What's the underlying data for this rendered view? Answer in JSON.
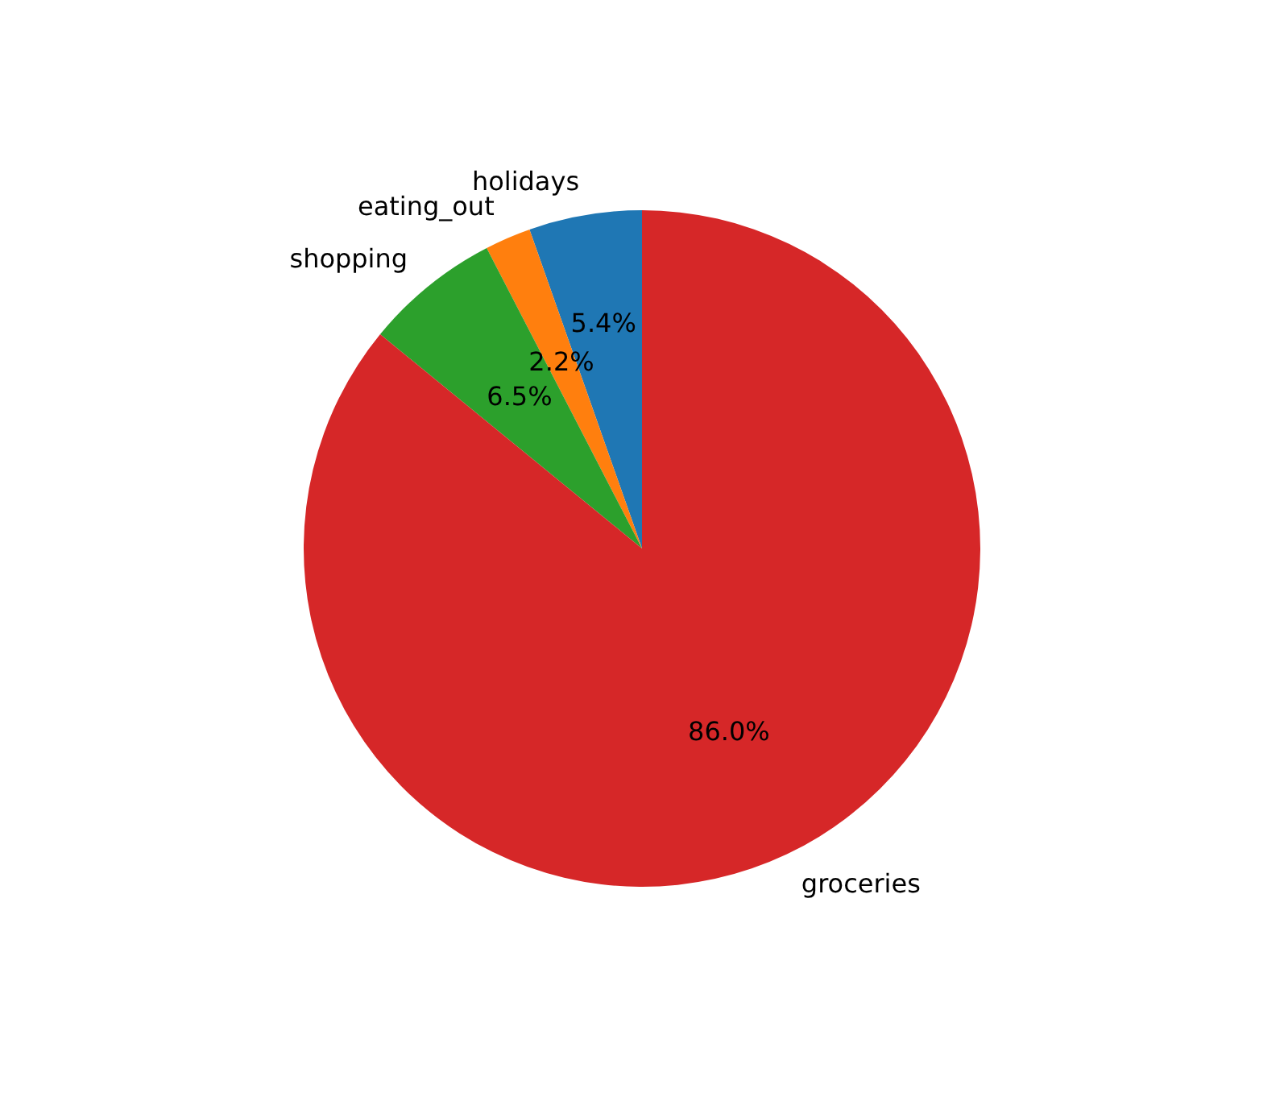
{
  "chart_data": {
    "type": "pie",
    "categories": [
      "holidays",
      "eating_out",
      "shopping",
      "groceries"
    ],
    "values": [
      5.4,
      2.2,
      6.5,
      86.0
    ],
    "colors": [
      "#1f77b4",
      "#ff7f0e",
      "#2ca02c",
      "#d62728"
    ],
    "value_labels": [
      "5.4%",
      "2.2%",
      "6.5%",
      "86.0%"
    ]
  }
}
